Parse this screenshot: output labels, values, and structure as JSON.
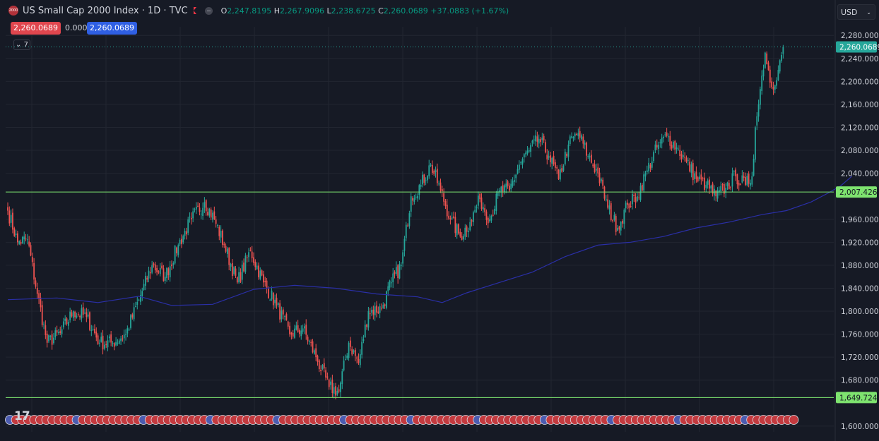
{
  "header": {
    "symbol_badge": "2000",
    "title": "US Small Cap 2000 Index · 1D · TVC",
    "ohlc": {
      "o_label": "O",
      "o": "2,247.8195",
      "h_label": "H",
      "h": "2,267.9096",
      "l_label": "L",
      "l": "2,238.6725",
      "c_label": "C",
      "c": "2,260.0689",
      "change": "+37.0883 (+1.67%)"
    }
  },
  "trade": {
    "sell": "2,260.0689",
    "spread": "0.0000",
    "buy": "2,260.0689"
  },
  "indicators_toggle": "7",
  "currency": {
    "label": "USD",
    "chevron": "⌄"
  },
  "logo_text": "17",
  "colors": {
    "bg": "#161a25",
    "up": "#26a69a",
    "down": "#ef5350",
    "ma": "#2a2fa6",
    "hline": "#7ee36f",
    "grid": "#222631"
  },
  "chart_data": {
    "type": "candlestick",
    "ylim": [
      1590,
      2295
    ],
    "y_ticks": [
      "2,280.0000",
      "2,240.0000",
      "2,200.0000",
      "2,160.0000",
      "2,120.0000",
      "2,080.0000",
      "2,040.0000",
      "1,960.0000",
      "1,920.0000",
      "1,880.0000",
      "1,840.0000",
      "1,800.0000",
      "1,760.0000",
      "1,720.0000",
      "1,680.0000",
      "1,600.0000"
    ],
    "y_tick_values": [
      2280,
      2240,
      2200,
      2160,
      2120,
      2080,
      2040,
      1960,
      1920,
      1880,
      1840,
      1800,
      1760,
      1720,
      1680,
      1600
    ],
    "last_price": {
      "value": 2260.0689,
      "label": "2,260.0689"
    },
    "horizontal_lines": [
      {
        "value": 2007.4266,
        "label": "2,007.4266"
      },
      {
        "value": 1649.7242,
        "label": "1,649.7242"
      }
    ],
    "close_anchors": [
      {
        "i": 0,
        "v": 1975
      },
      {
        "i": 6,
        "v": 1920
      },
      {
        "i": 12,
        "v": 1925
      },
      {
        "i": 18,
        "v": 1830
      },
      {
        "i": 24,
        "v": 1745
      },
      {
        "i": 32,
        "v": 1762
      },
      {
        "i": 40,
        "v": 1800
      },
      {
        "i": 48,
        "v": 1790
      },
      {
        "i": 56,
        "v": 1745
      },
      {
        "i": 64,
        "v": 1745
      },
      {
        "i": 72,
        "v": 1760
      },
      {
        "i": 80,
        "v": 1820
      },
      {
        "i": 88,
        "v": 1880
      },
      {
        "i": 96,
        "v": 1860
      },
      {
        "i": 104,
        "v": 1915
      },
      {
        "i": 112,
        "v": 1960
      },
      {
        "i": 120,
        "v": 1990
      },
      {
        "i": 126,
        "v": 1960
      },
      {
        "i": 132,
        "v": 1915
      },
      {
        "i": 140,
        "v": 1850
      },
      {
        "i": 148,
        "v": 1905
      },
      {
        "i": 156,
        "v": 1850
      },
      {
        "i": 164,
        "v": 1810
      },
      {
        "i": 172,
        "v": 1760
      },
      {
        "i": 180,
        "v": 1770
      },
      {
        "i": 188,
        "v": 1720
      },
      {
        "i": 196,
        "v": 1668
      },
      {
        "i": 202,
        "v": 1660
      },
      {
        "i": 208,
        "v": 1745
      },
      {
        "i": 214,
        "v": 1710
      },
      {
        "i": 220,
        "v": 1800
      },
      {
        "i": 228,
        "v": 1805
      },
      {
        "i": 234,
        "v": 1850
      },
      {
        "i": 240,
        "v": 1880
      },
      {
        "i": 246,
        "v": 2000
      },
      {
        "i": 252,
        "v": 2020
      },
      {
        "i": 258,
        "v": 2055
      },
      {
        "i": 264,
        "v": 2010
      },
      {
        "i": 270,
        "v": 1960
      },
      {
        "i": 276,
        "v": 1930
      },
      {
        "i": 282,
        "v": 1955
      },
      {
        "i": 288,
        "v": 1995
      },
      {
        "i": 294,
        "v": 1960
      },
      {
        "i": 300,
        "v": 2010
      },
      {
        "i": 306,
        "v": 2010
      },
      {
        "i": 312,
        "v": 2055
      },
      {
        "i": 318,
        "v": 2080
      },
      {
        "i": 324,
        "v": 2100
      },
      {
        "i": 330,
        "v": 2070
      },
      {
        "i": 336,
        "v": 2030
      },
      {
        "i": 342,
        "v": 2090
      },
      {
        "i": 348,
        "v": 2110
      },
      {
        "i": 354,
        "v": 2070
      },
      {
        "i": 360,
        "v": 2040
      },
      {
        "i": 366,
        "v": 1980
      },
      {
        "i": 372,
        "v": 1945
      },
      {
        "i": 378,
        "v": 1985
      },
      {
        "i": 384,
        "v": 2000
      },
      {
        "i": 390,
        "v": 2045
      },
      {
        "i": 396,
        "v": 2085
      },
      {
        "i": 402,
        "v": 2105
      },
      {
        "i": 408,
        "v": 2085
      },
      {
        "i": 414,
        "v": 2060
      },
      {
        "i": 420,
        "v": 2030
      },
      {
        "i": 426,
        "v": 2020
      },
      {
        "i": 432,
        "v": 2000
      },
      {
        "i": 438,
        "v": 2015
      },
      {
        "i": 444,
        "v": 2035
      },
      {
        "i": 450,
        "v": 2020
      },
      {
        "i": 454,
        "v": 2035
      },
      {
        "i": 456,
        "v": 2120
      },
      {
        "i": 458,
        "v": 2160
      },
      {
        "i": 460,
        "v": 2210
      },
      {
        "i": 462,
        "v": 2250
      },
      {
        "i": 466,
        "v": 2190
      },
      {
        "i": 470,
        "v": 2220
      },
      {
        "i": 473,
        "v": 2260.0689
      }
    ],
    "candle_count": 474,
    "ma_points": [
      {
        "i": 0,
        "v": 1820
      },
      {
        "i": 30,
        "v": 1823
      },
      {
        "i": 55,
        "v": 1815
      },
      {
        "i": 80,
        "v": 1826
      },
      {
        "i": 100,
        "v": 1810
      },
      {
        "i": 125,
        "v": 1812
      },
      {
        "i": 150,
        "v": 1838
      },
      {
        "i": 175,
        "v": 1845
      },
      {
        "i": 200,
        "v": 1840
      },
      {
        "i": 225,
        "v": 1830
      },
      {
        "i": 250,
        "v": 1825
      },
      {
        "i": 265,
        "v": 1815
      },
      {
        "i": 280,
        "v": 1832
      },
      {
        "i": 300,
        "v": 1850
      },
      {
        "i": 320,
        "v": 1868
      },
      {
        "i": 340,
        "v": 1895
      },
      {
        "i": 360,
        "v": 1915
      },
      {
        "i": 380,
        "v": 1920
      },
      {
        "i": 400,
        "v": 1930
      },
      {
        "i": 420,
        "v": 1945
      },
      {
        "i": 440,
        "v": 1955
      },
      {
        "i": 460,
        "v": 1968
      },
      {
        "i": 475,
        "v": 1975
      },
      {
        "i": 490,
        "v": 1990
      },
      {
        "i": 500,
        "v": 2005
      },
      {
        "i": 508,
        "v": 2018
      },
      {
        "i": 515,
        "v": 2035
      }
    ],
    "event_marker_count": 130
  }
}
